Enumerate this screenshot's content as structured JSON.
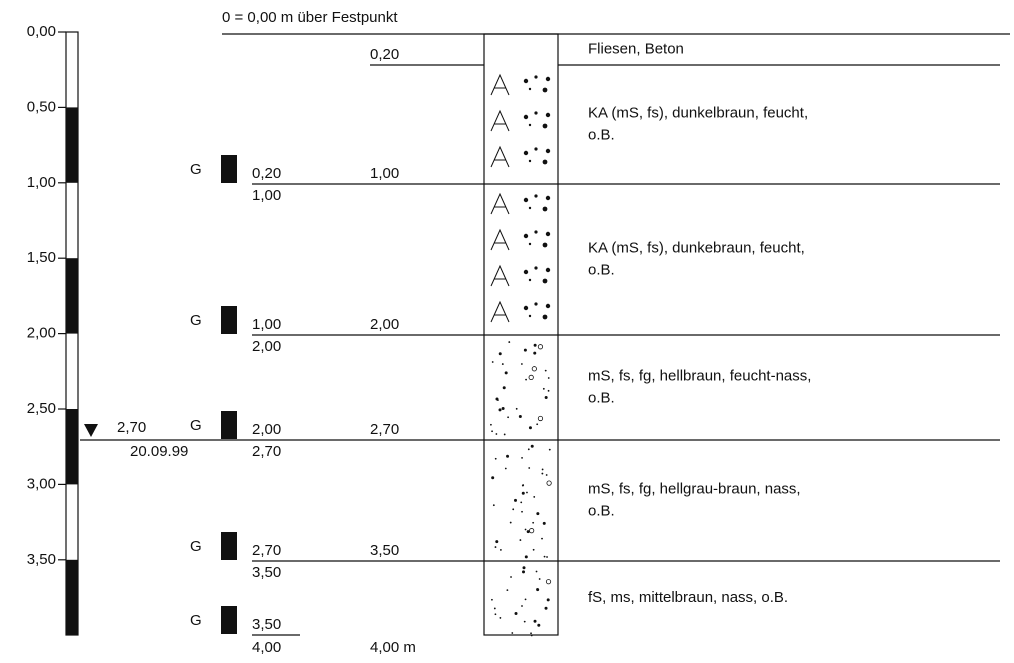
{
  "header": {
    "title": "0 = 0,00 m über Festpunkt"
  },
  "scale": [
    "0,00",
    "0,50",
    "1,00",
    "1,50",
    "2,00",
    "2,50",
    "3,00",
    "3,50"
  ],
  "layers": [
    {
      "depth": "0,20",
      "description": [
        "Fliesen, Beton"
      ]
    },
    {
      "depth": "1,00",
      "description": [
        "KA (mS, fs), dunkelbraun, feucht,",
        "o.B."
      ]
    },
    {
      "depth": "2,00",
      "description": [
        "KA (mS, fs), dunkebraun, feucht,",
        "o.B."
      ]
    },
    {
      "depth": "2,70",
      "description": [
        "mS, fs, fg, hellbraun, feucht-nass,",
        "o.B."
      ]
    },
    {
      "depth": "3,50",
      "description": [
        "mS, fs, fg, hellgrau-braun, nass,",
        "o.B."
      ]
    },
    {
      "depth": "4,00 m",
      "description": [
        "fS, ms, mittelbraun, nass, o.B."
      ]
    }
  ],
  "samples": [
    {
      "code": "G",
      "from": "0,20",
      "to": "1,00"
    },
    {
      "code": "G",
      "from": "1,00",
      "to": "2,00"
    },
    {
      "code": "G",
      "from": "2,00",
      "to": "2,70"
    },
    {
      "code": "G",
      "from": "2,70",
      "to": "3,50"
    },
    {
      "code": "G",
      "from": "3,50",
      "to": "4,00"
    }
  ],
  "water": {
    "depth": "2,70",
    "date": "20.09.99"
  }
}
